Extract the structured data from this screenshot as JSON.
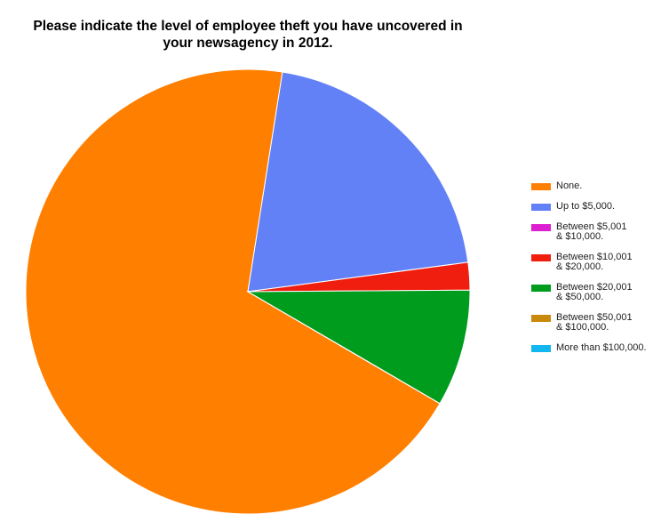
{
  "chart_data": {
    "type": "pie",
    "title": "Please indicate the level of employee theft you have uncovered in\nyour newsagency in 2012.",
    "categories": [
      "None.",
      "Up to $5,000.",
      "Between $5,001\n& $10,000.",
      "Between $10,001\n& $20,000.",
      "Between $20,001\n& $50,000.",
      "Between $50,001\n& $100,000.",
      "More than $100,000."
    ],
    "values": [
      69.1,
      20.4,
      0,
      2.0,
      8.5,
      0,
      0
    ],
    "colors": [
      "#ff7f00",
      "#6381f6",
      "#dd1fd1",
      "#f01e0e",
      "#009c1d",
      "#c98a0c",
      "#12b7ef"
    ],
    "legend": "right"
  }
}
